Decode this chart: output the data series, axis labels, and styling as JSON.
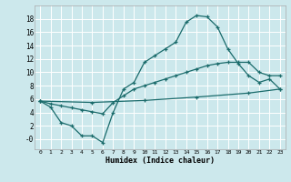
{
  "bg_color": "#cce8ec",
  "line_color": "#1a6b6b",
  "grid_color": "#ffffff",
  "xlabel": "Humidex (Indice chaleur)",
  "xticks": [
    0,
    1,
    2,
    3,
    4,
    5,
    6,
    7,
    8,
    9,
    10,
    11,
    12,
    13,
    14,
    15,
    16,
    17,
    18,
    19,
    20,
    21,
    22,
    23
  ],
  "yticks": [
    0,
    2,
    4,
    6,
    8,
    10,
    12,
    14,
    16,
    18
  ],
  "ytick_labels": [
    "-0",
    "2",
    "4",
    "6",
    "8",
    "10",
    "12",
    "14",
    "16",
    "18"
  ],
  "xlim": [
    -0.5,
    23.5
  ],
  "ylim": [
    -1.5,
    20.0
  ],
  "line1_x": [
    0,
    1,
    2,
    3,
    4,
    5,
    6,
    7,
    8,
    9,
    10,
    11,
    12,
    13,
    14,
    15,
    16,
    17,
    18,
    19,
    20,
    21,
    22,
    23
  ],
  "line1_y": [
    5.7,
    4.8,
    2.5,
    2.0,
    0.5,
    0.5,
    -0.5,
    4.0,
    7.5,
    8.5,
    11.5,
    12.5,
    13.5,
    14.5,
    17.5,
    18.5,
    18.3,
    16.8,
    13.5,
    11.3,
    9.5,
    8.5,
    9.0,
    7.5
  ],
  "line2_x": [
    0,
    1,
    2,
    3,
    4,
    5,
    6,
    7,
    8,
    9,
    10,
    11,
    12,
    13,
    14,
    15,
    16,
    17,
    18,
    19,
    20,
    21,
    22,
    23
  ],
  "line2_y": [
    5.7,
    5.3,
    5.0,
    4.7,
    4.4,
    4.1,
    3.8,
    5.5,
    6.5,
    7.5,
    8.0,
    8.5,
    9.0,
    9.5,
    10.0,
    10.5,
    11.0,
    11.3,
    11.5,
    11.5,
    11.5,
    10.0,
    9.5,
    9.5
  ],
  "line3_x": [
    0,
    5,
    10,
    15,
    20,
    23
  ],
  "line3_y": [
    5.7,
    5.5,
    5.8,
    6.3,
    6.9,
    7.5
  ]
}
